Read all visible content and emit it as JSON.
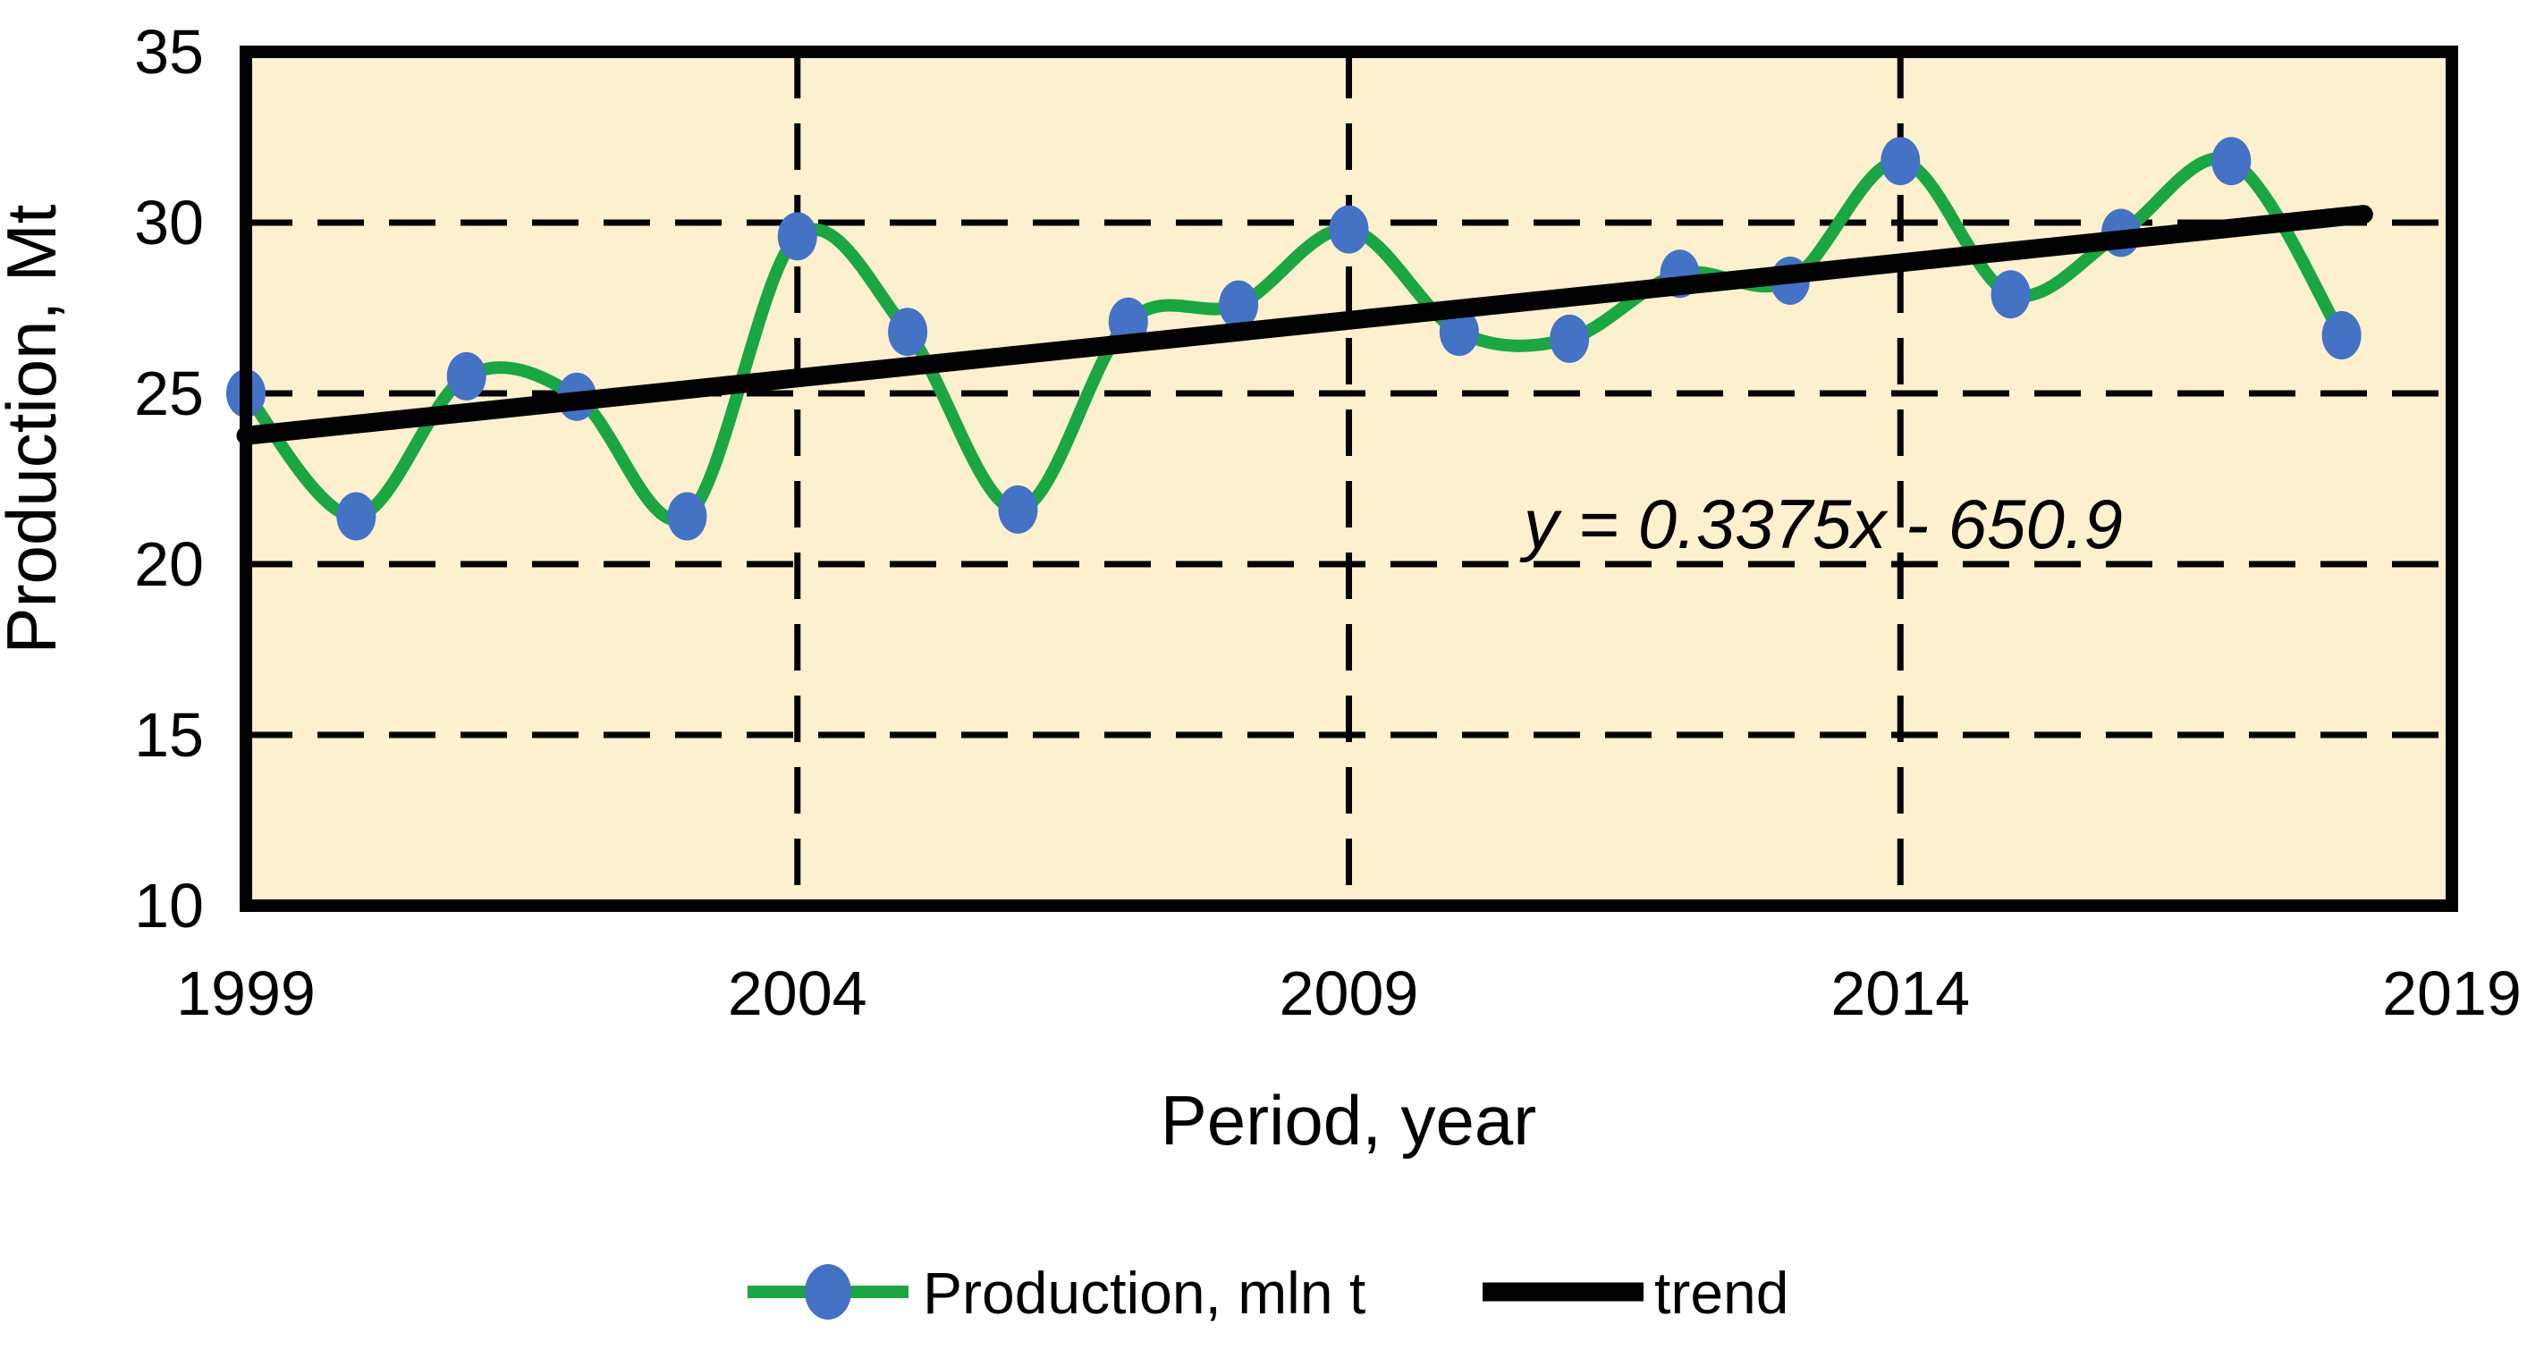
{
  "chart_data": {
    "type": "line",
    "title": "",
    "xlabel": "Period, year",
    "ylabel": "Production, Mt",
    "x": [
      1999,
      2000,
      2001,
      2002,
      2003,
      2004,
      2005,
      2006,
      2007,
      2008,
      2009,
      2010,
      2011,
      2012,
      2013,
      2014,
      2015,
      2016,
      2017,
      2018
    ],
    "series": [
      {
        "name": "Production, mln t",
        "type": "smooth_line",
        "color": "#1AA643",
        "line_width": 14,
        "marker": "ellipse",
        "marker_color": "#4472C4",
        "values": [
          25.0,
          21.4,
          25.5,
          24.9,
          21.4,
          29.6,
          26.8,
          21.6,
          27.1,
          27.6,
          29.8,
          26.8,
          26.6,
          28.5,
          28.3,
          31.8,
          27.9,
          29.7,
          31.8,
          26.7
        ]
      },
      {
        "name": "trend",
        "type": "linear_trendline",
        "color": "#000000",
        "line_width": 21,
        "slope": 0.3375,
        "intercept": -650.9,
        "x_start": 1999,
        "x_end": 2018.2
      }
    ],
    "xlim": [
      1999,
      2019
    ],
    "ylim": [
      10,
      35
    ],
    "x_ticks": [
      1999,
      2004,
      2009,
      2014,
      2019
    ],
    "y_ticks": [
      35,
      30,
      25,
      20,
      15,
      10
    ],
    "x_gridlines": [
      2004,
      2009,
      2014
    ],
    "y_gridlines": [
      30,
      25,
      20,
      15
    ],
    "grid": "dashed",
    "plot_bg": "#FCF0CE",
    "outer_bg": "#FFFFFF",
    "border_color": "#000000",
    "annotation": {
      "text": "y = 0.3375x - 650.9",
      "x": 2013.3,
      "y": 21.2
    },
    "legend_position": "bottom"
  },
  "axes": {
    "x_title": "Period, year",
    "y_title": "Production, Mt"
  },
  "legend": {
    "items": [
      {
        "label": "Production, mln t",
        "swatch": "green-line-with-blue-marker"
      },
      {
        "label": "trend",
        "swatch": "black-line"
      }
    ]
  }
}
